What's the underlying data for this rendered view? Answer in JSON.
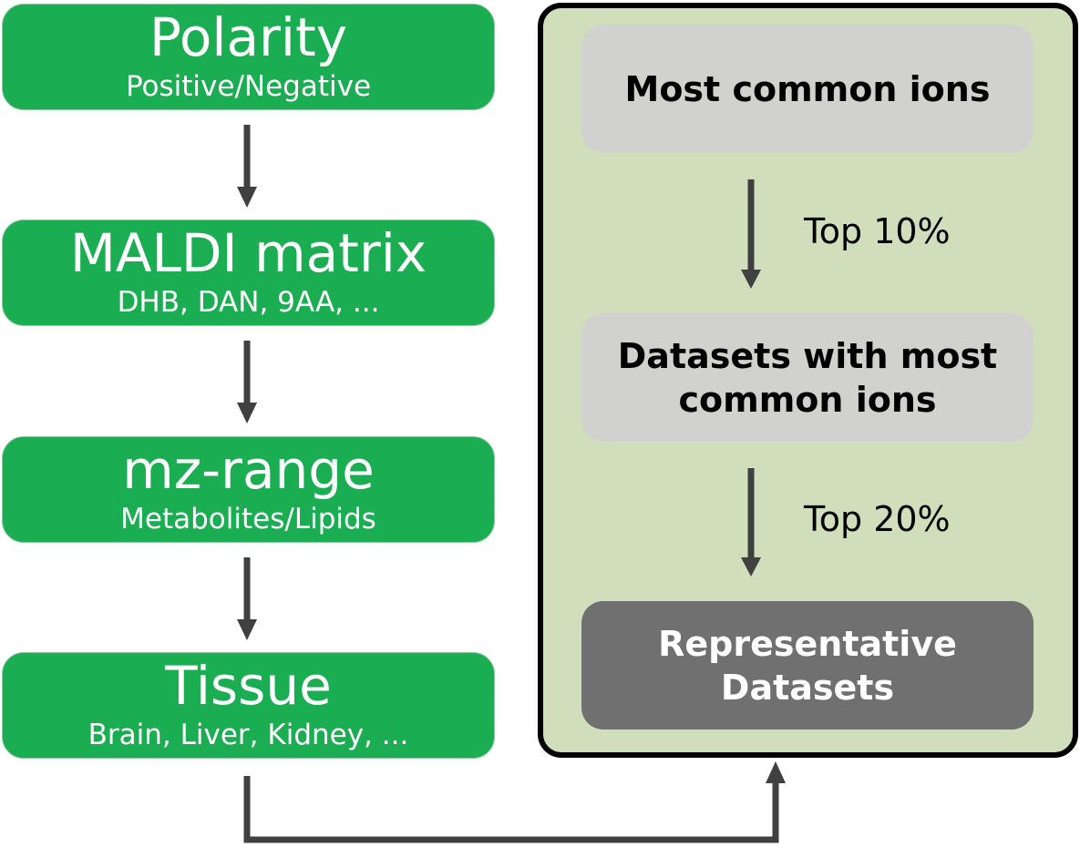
{
  "steps": [
    {
      "title": "Polarity",
      "subtitle": "Positive/Negative"
    },
    {
      "title": "MALDI matrix",
      "subtitle": "DHB, DAN, 9AA, ..."
    },
    {
      "title": "mz-range",
      "subtitle": "Metabolites/Lipids"
    },
    {
      "title": "Tissue",
      "subtitle": "Brain, Liver, Kidney, ..."
    }
  ],
  "panel": {
    "box1": "Most common ions",
    "label1": "Top 10%",
    "box2": "Datasets with most\ncommon ions",
    "label2": "Top 20%",
    "box3": "Representative\nDatasets"
  },
  "colors": {
    "step_fill": "#1aad52",
    "panel_fill": "#d1debb",
    "light_box": "#d1d1d0",
    "dark_box": "#6f706f",
    "arrow": "#404040"
  }
}
